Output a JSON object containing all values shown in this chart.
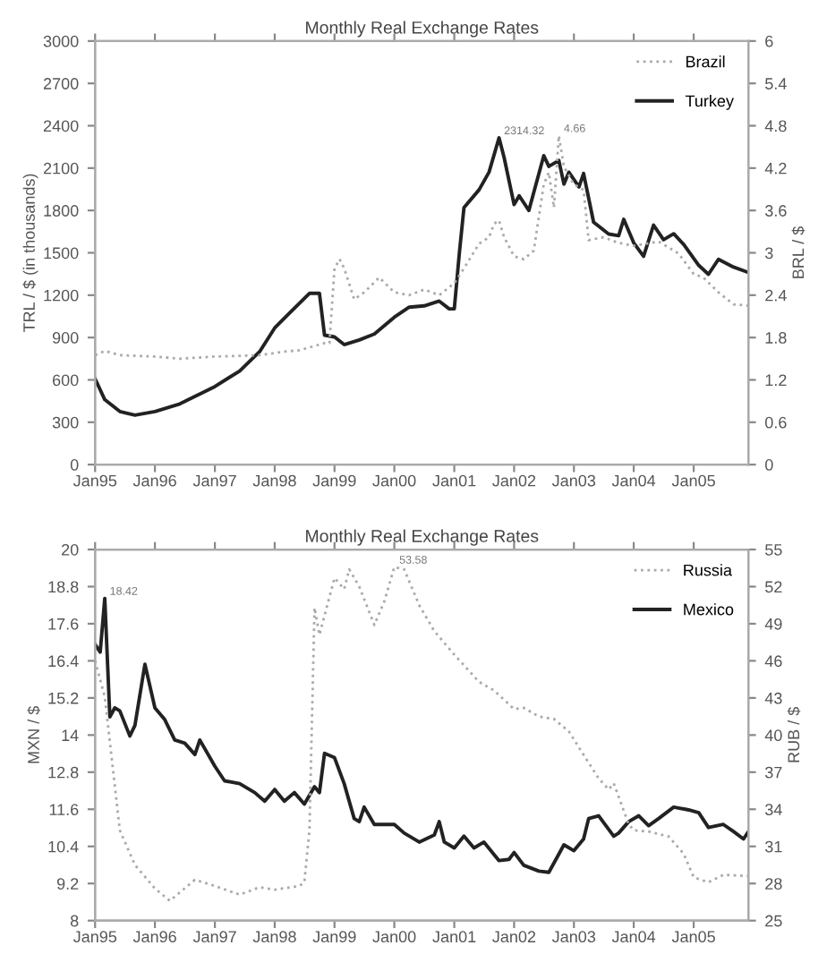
{
  "chart_data": [
    {
      "type": "line",
      "title": "Monthly Real Exchange Rates",
      "ylabel": "TRL / $ (in thousands)",
      "y2label": "BRL / $",
      "xlim": [
        "1995-01",
        "2005-12"
      ],
      "xticks": [
        {
          "value": "1995-01",
          "label": "Jan95"
        },
        {
          "value": "1996-01",
          "label": "Jan96"
        },
        {
          "value": "1997-01",
          "label": "Jan97"
        },
        {
          "value": "1998-01",
          "label": "Jan98"
        },
        {
          "value": "1999-01",
          "label": "Jan99"
        },
        {
          "value": "2000-01",
          "label": "Jan00"
        },
        {
          "value": "2001-01",
          "label": "Jan01"
        },
        {
          "value": "2002-01",
          "label": "Jan02"
        },
        {
          "value": "2003-01",
          "label": "Jan03"
        },
        {
          "value": "2004-01",
          "label": "Jan04"
        },
        {
          "value": "2005-01",
          "label": "Jan05"
        }
      ],
      "ylim": [
        0,
        3000
      ],
      "yticks": [
        0,
        300,
        600,
        900,
        1200,
        1500,
        1800,
        2100,
        2400,
        2700,
        3000
      ],
      "y2lim": [
        0,
        6
      ],
      "y2ticks": [
        0,
        0.6,
        1.2,
        1.8,
        2.4,
        3,
        3.6,
        4.2,
        4.8,
        5.4,
        6
      ],
      "legend": "top right",
      "grid": false,
      "series": [
        {
          "name": "Brazil",
          "color": "#aaaaaa",
          "axis": "y2",
          "line_style": "dotted",
          "x": [
            "1995-01",
            "1995-03",
            "1995-06",
            "1996-01",
            "1996-06",
            "1997-01",
            "1997-10",
            "1998-03",
            "1998-06",
            "1998-11",
            "1998-12",
            "1999-01",
            "1999-02",
            "1999-03",
            "1999-05",
            "1999-07",
            "1999-10",
            "2000-01",
            "2000-04",
            "2000-07",
            "2000-10",
            "2001-01",
            "2001-03",
            "2001-06",
            "2001-08",
            "2001-09",
            "2001-10",
            "2001-11",
            "2002-01",
            "2002-03",
            "2002-05",
            "2002-07",
            "2002-08",
            "2002-09",
            "2002-10",
            "2002-11",
            "2003-01",
            "2003-03",
            "2003-04",
            "2003-07",
            "2003-10",
            "2004-01",
            "2004-06",
            "2004-10",
            "2005-01",
            "2005-03",
            "2005-06",
            "2005-09",
            "2005-12"
          ],
          "values": [
            1.55,
            1.61,
            1.55,
            1.53,
            1.5,
            1.53,
            1.55,
            1.6,
            1.62,
            1.72,
            1.72,
            2.78,
            2.91,
            2.78,
            2.34,
            2.44,
            2.65,
            2.44,
            2.4,
            2.48,
            2.4,
            2.57,
            2.78,
            3.13,
            3.22,
            3.41,
            3.46,
            3.22,
            2.95,
            2.91,
            3.03,
            3.97,
            4.14,
            3.64,
            4.66,
            4.22,
            3.97,
            3.89,
            3.18,
            3.22,
            3.14,
            3.1,
            3.16,
            2.99,
            2.7,
            2.65,
            2.44,
            2.27,
            2.25
          ]
        },
        {
          "name": "Turkey",
          "color": "#222222",
          "line_style": "solid",
          "x": [
            "1995-01",
            "1995-03",
            "1995-06",
            "1995-09",
            "1996-01",
            "1996-06",
            "1997-01",
            "1997-06",
            "1997-10",
            "1998-01",
            "1998-04",
            "1998-08",
            "1998-10",
            "1998-11",
            "1999-01",
            "1999-03",
            "1999-06",
            "1999-09",
            "2000-01",
            "2000-04",
            "2000-07",
            "2000-10",
            "2000-12",
            "2001-01",
            "2001-02",
            "2001-03",
            "2001-06",
            "2001-08",
            "2001-10",
            "2001-11",
            "2002-01",
            "2002-02",
            "2002-04",
            "2002-07",
            "2002-08",
            "2002-10",
            "2002-11",
            "2002-12",
            "2003-02",
            "2003-03",
            "2003-05",
            "2003-08",
            "2003-10",
            "2003-11",
            "2004-01",
            "2004-03",
            "2004-05",
            "2004-07",
            "2004-09",
            "2004-11",
            "2005-02",
            "2005-04",
            "2005-06",
            "2005-09",
            "2005-12"
          ],
          "values": [
            608,
            460,
            376,
            350,
            376,
            430,
            553,
            663,
            800,
            968,
            1073,
            1213,
            1213,
            917,
            904,
            850,
            883,
            925,
            1044,
            1115,
            1124,
            1158,
            1103,
            1103,
            1500,
            1820,
            1946,
            2071,
            2314.32,
            2175,
            1842,
            1904,
            1800,
            2188,
            2112,
            2154,
            1987,
            2071,
            1967,
            2062,
            1717,
            1633,
            1621,
            1737,
            1571,
            1475,
            1696,
            1593,
            1635,
            1559,
            1411,
            1348,
            1454,
            1399,
            1361
          ]
        }
      ],
      "annotations": [
        {
          "text": "2314.32",
          "x": "2001-10",
          "y": 2314.32
        },
        {
          "text": "4.66",
          "x": "2002-10",
          "y": 2330
        }
      ]
    },
    {
      "type": "line",
      "title": "Monthly Real Exchange Rates",
      "ylabel": "MXN / $",
      "y2label": "RUB / $",
      "xlim": [
        "1995-01",
        "2005-12"
      ],
      "xticks": [
        {
          "value": "1995-01",
          "label": "Jan95"
        },
        {
          "value": "1996-01",
          "label": "Jan96"
        },
        {
          "value": "1997-01",
          "label": "Jan97"
        },
        {
          "value": "1998-01",
          "label": "Jan98"
        },
        {
          "value": "1999-01",
          "label": "Jan99"
        },
        {
          "value": "2000-01",
          "label": "Jan00"
        },
        {
          "value": "2001-01",
          "label": "Jan01"
        },
        {
          "value": "2002-01",
          "label": "Jan02"
        },
        {
          "value": "2003-01",
          "label": "Jan03"
        },
        {
          "value": "2004-01",
          "label": "Jan04"
        },
        {
          "value": "2005-01",
          "label": "Jan05"
        }
      ],
      "ylim": [
        8,
        20
      ],
      "yticks": [
        8,
        9.2,
        10.4,
        11.6,
        12.8,
        14,
        15.2,
        16.4,
        17.6,
        18.8,
        20
      ],
      "y2lim": [
        25,
        55
      ],
      "y2ticks": [
        25,
        28,
        31,
        34,
        37,
        40,
        43,
        46,
        49,
        52,
        55
      ],
      "legend": "top right",
      "grid": false,
      "series": [
        {
          "name": "Russia",
          "color": "#aaaaaa",
          "axis": "y2",
          "line_style": "dotted",
          "x": [
            "1995-01",
            "1995-03",
            "1995-06",
            "1995-09",
            "1996-01",
            "1996-04",
            "1996-09",
            "1997-01",
            "1997-06",
            "1997-10",
            "1998-01",
            "1998-06",
            "1998-07",
            "1998-08",
            "1998-09",
            "1998-10",
            "1999-01",
            "1999-03",
            "1999-04",
            "1999-06",
            "1999-09",
            "1999-11",
            "2000-01",
            "2000-03",
            "2000-06",
            "2000-09",
            "2001-01",
            "2001-06",
            "2001-09",
            "2002-01",
            "2002-03",
            "2002-06",
            "2002-09",
            "2002-12",
            "2003-03",
            "2003-06",
            "2003-08",
            "2003-09",
            "2003-12",
            "2004-01",
            "2004-04",
            "2004-08",
            "2004-11",
            "2005-01",
            "2005-04",
            "2005-07",
            "2005-12"
          ],
          "values": [
            46,
            43.1,
            32.3,
            29.5,
            27.6,
            26.6,
            28.3,
            27.8,
            27.1,
            27.7,
            27.5,
            27.8,
            28.1,
            32.3,
            50.3,
            48.1,
            52.7,
            51.8,
            53.4,
            52,
            48.9,
            50.8,
            53.58,
            53.4,
            50.5,
            48.4,
            46.5,
            44.3,
            43.6,
            42.1,
            42.2,
            41.5,
            41.3,
            40.3,
            38.4,
            36.5,
            35.6,
            36.1,
            32.8,
            32.3,
            32.2,
            31.8,
            30.4,
            28.5,
            28.1,
            28.7,
            28.6
          ]
        },
        {
          "name": "Mexico",
          "color": "#222222",
          "line_style": "solid",
          "x": [
            "1995-01",
            "1995-02",
            "1995-03",
            "1995-04",
            "1995-05",
            "1995-06",
            "1995-08",
            "1995-09",
            "1995-11",
            "1996-01",
            "1996-03",
            "1996-05",
            "1996-07",
            "1996-09",
            "1996-10",
            "1997-01",
            "1997-03",
            "1997-06",
            "1997-09",
            "1997-11",
            "1998-01",
            "1998-03",
            "1998-05",
            "1998-07",
            "1998-09",
            "1998-10",
            "1998-11",
            "1999-01",
            "1999-03",
            "1999-05",
            "1999-06",
            "1999-07",
            "1999-09",
            "2000-01",
            "2000-03",
            "2000-06",
            "2000-09",
            "2000-10",
            "2000-11",
            "2001-01",
            "2001-03",
            "2001-05",
            "2001-07",
            "2001-10",
            "2001-12",
            "2002-01",
            "2002-03",
            "2002-06",
            "2002-08",
            "2002-11",
            "2003-01",
            "2003-03",
            "2003-04",
            "2003-06",
            "2003-09",
            "2003-10",
            "2003-12",
            "2004-02",
            "2004-04",
            "2004-06",
            "2004-09",
            "2004-12",
            "2005-02",
            "2005-04",
            "2005-07",
            "2005-09",
            "2005-11",
            "2005-12"
          ],
          "values": [
            16.93,
            16.68,
            18.42,
            14.59,
            14.88,
            14.78,
            13.97,
            14.31,
            16.29,
            14.88,
            14.5,
            13.84,
            13.74,
            13.37,
            13.84,
            12.99,
            12.52,
            12.43,
            12.14,
            11.86,
            12.24,
            11.86,
            12.14,
            11.77,
            12.33,
            12.14,
            13.41,
            13.27,
            12.43,
            11.3,
            11.2,
            11.67,
            11.11,
            11.11,
            10.83,
            10.54,
            10.77,
            11.2,
            10.54,
            10.35,
            10.73,
            10.35,
            10.54,
            9.94,
            9.98,
            10.2,
            9.79,
            9.6,
            9.56,
            10.45,
            10.26,
            10.64,
            11.3,
            11.39,
            10.73,
            10.83,
            11.2,
            11.39,
            11.07,
            11.3,
            11.67,
            11.58,
            11.49,
            11.01,
            11.11,
            10.88,
            10.64,
            10.88
          ]
        }
      ],
      "annotations": [
        {
          "text": "18.42",
          "x": "1995-03",
          "y": 18.42
        },
        {
          "text": "53.58",
          "x": "2000-01",
          "y": 19.43
        }
      ]
    }
  ]
}
